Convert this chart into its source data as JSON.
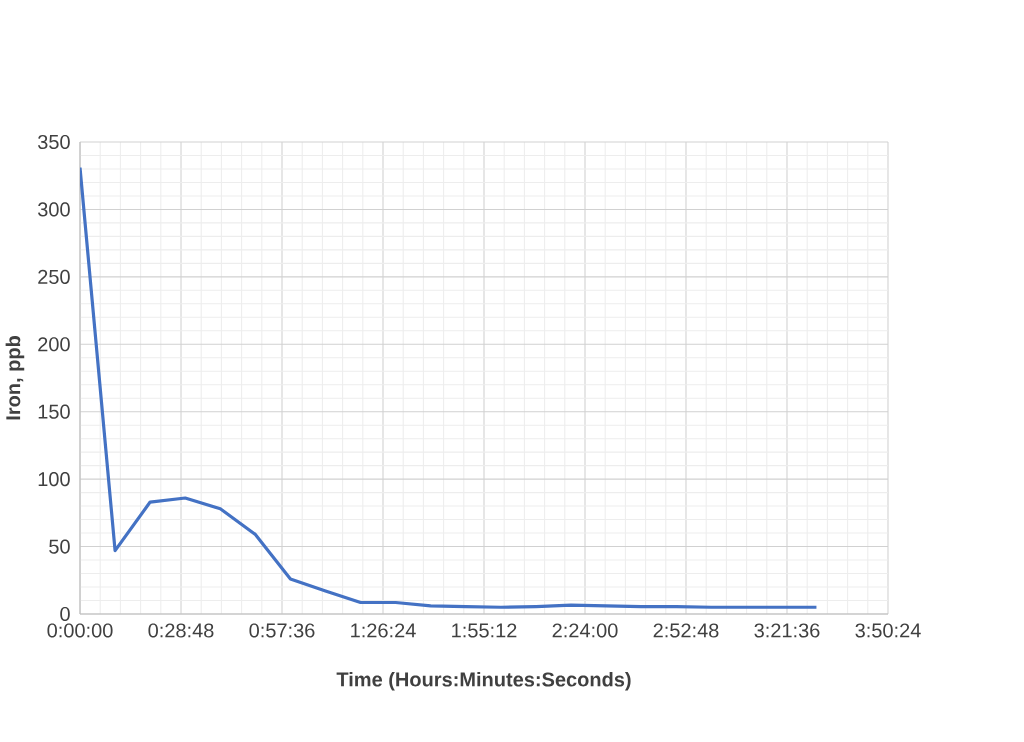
{
  "chart_data": {
    "type": "line",
    "xlabel": "Time (Hours:Minutes:Seconds)",
    "ylabel": "Iron, ppb",
    "x": [
      0,
      0.1667,
      0.3333,
      0.5,
      0.6667,
      0.8333,
      1.0,
      1.1667,
      1.3333,
      1.5,
      1.6667,
      1.8333,
      2.0,
      2.1667,
      2.3333,
      2.5,
      2.6667,
      2.8333,
      3.0,
      3.1667,
      3.3333,
      3.5
    ],
    "series": [
      {
        "color": "#4472c4",
        "values": [
          331,
          47,
          83,
          86,
          78,
          59,
          26,
          17,
          8.5,
          8.5,
          6,
          5.5,
          5,
          5.5,
          6.5,
          6,
          5.5,
          5.5,
          5,
          5,
          5,
          5
        ]
      }
    ],
    "xlim": [
      0,
      3.84
    ],
    "xticks": [
      {
        "value": 0,
        "label": "0:00:00"
      },
      {
        "value": 0.48,
        "label": "0:28:48"
      },
      {
        "value": 0.96,
        "label": "0:57:36"
      },
      {
        "value": 1.44,
        "label": "1:26:24"
      },
      {
        "value": 1.92,
        "label": "1:55:12"
      },
      {
        "value": 2.4,
        "label": "2:24:00"
      },
      {
        "value": 2.88,
        "label": "2:52:48"
      },
      {
        "value": 3.36,
        "label": "3:21:36"
      },
      {
        "value": 3.84,
        "label": "3:50:24"
      }
    ],
    "ylim": [
      0,
      350
    ],
    "yticks": [
      0,
      50,
      100,
      150,
      200,
      250,
      300,
      350
    ],
    "grid": true,
    "marker": "none",
    "line_style": "solid"
  }
}
